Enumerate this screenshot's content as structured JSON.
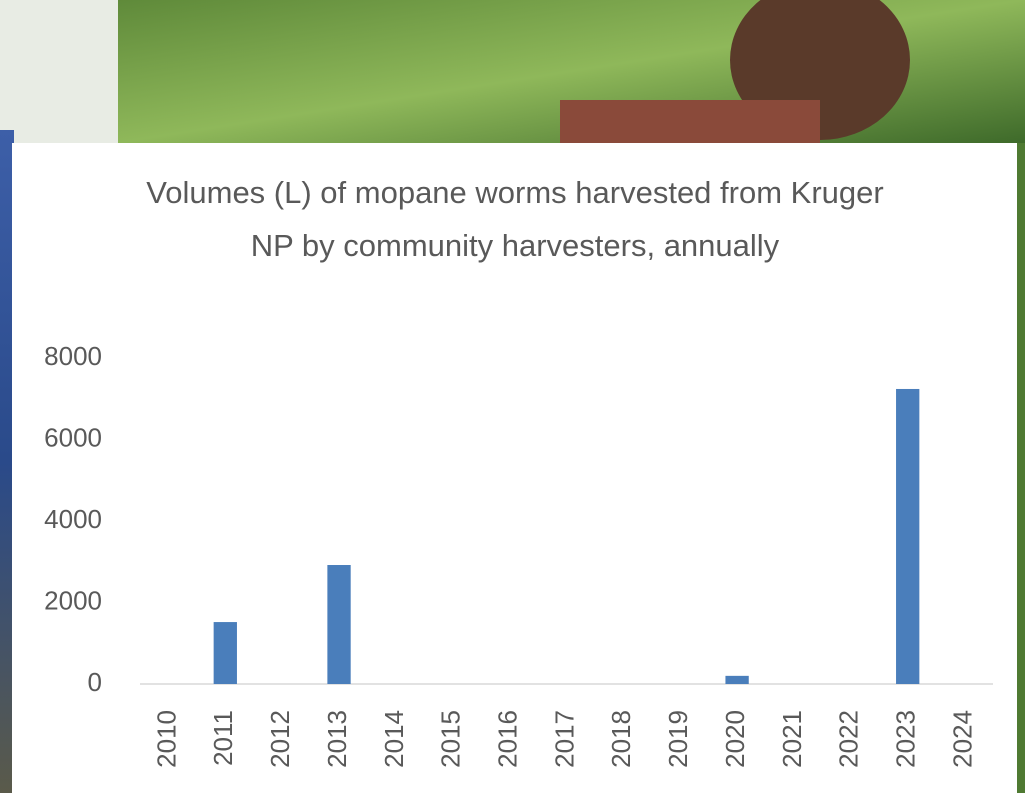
{
  "chart_data": {
    "type": "bar",
    "title": "Volumes (L) of mopane worms harvested from Kruger NP by community harvesters, annually",
    "categories": [
      "2010",
      "2011",
      "2012",
      "2013",
      "2014",
      "2015",
      "2016",
      "2017",
      "2018",
      "2019",
      "2020",
      "2021",
      "2022",
      "2023",
      "2024"
    ],
    "values": [
      0,
      1520,
      0,
      2920,
      0,
      0,
      0,
      0,
      0,
      0,
      200,
      0,
      0,
      7240,
      0
    ],
    "color": "#4a7ebb",
    "ylim": [
      0,
      8000
    ],
    "yticks": [
      0,
      2000,
      4000,
      6000,
      8000
    ],
    "grid": false
  }
}
